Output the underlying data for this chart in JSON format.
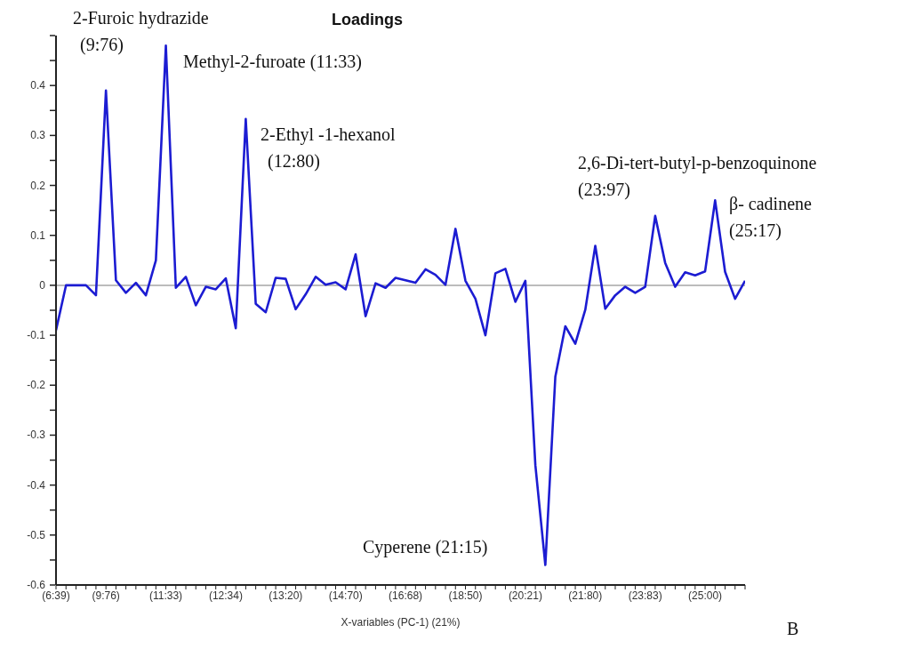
{
  "chart_data": {
    "type": "line",
    "title": "Loadings",
    "xlabel": "X-variables (PC-1) (21%)",
    "categories": [
      "(6:39)",
      null,
      null,
      null,
      null,
      "(9:76)",
      null,
      null,
      null,
      null,
      null,
      "(11:33)",
      null,
      null,
      null,
      null,
      null,
      "(12:34)",
      null,
      null,
      null,
      null,
      null,
      "(13:20)",
      null,
      null,
      null,
      null,
      null,
      "(14:70)",
      null,
      null,
      null,
      null,
      null,
      "(16:68)",
      null,
      null,
      null,
      null,
      null,
      "(18:50)",
      null,
      null,
      null,
      null,
      null,
      "(20:21)",
      null,
      null,
      null,
      null,
      null,
      "(21:80)",
      null,
      null,
      null,
      null,
      null,
      "(23:83)",
      null,
      null,
      null,
      null,
      null,
      "(25:00)",
      null,
      null,
      null,
      null
    ],
    "series": [
      {
        "color": "#1c1cd2",
        "values": [
          -0.09,
          0,
          0,
          0,
          -0.02,
          0.39,
          0.01,
          -0.015,
          0.005,
          -0.02,
          0.05,
          0.48,
          -0.005,
          0.017,
          -0.04,
          -0.003,
          -0.008,
          0.014,
          -0.086,
          0.333,
          -0.037,
          -0.054,
          0.015,
          0.013,
          -0.048,
          -0.018,
          0.017,
          0.001,
          0.006,
          -0.008,
          0.062,
          -0.062,
          0.004,
          -0.005,
          0.015,
          0.01,
          0.005,
          0.032,
          0.021,
          0.001,
          0.113,
          0.009,
          -0.027,
          -0.1,
          0.024,
          0.033,
          -0.033,
          0.009,
          -0.36,
          -0.56,
          -0.183,
          -0.082,
          -0.117,
          -0.049,
          0.079,
          -0.047,
          -0.02,
          -0.003,
          -0.015,
          -0.003,
          0.139,
          0.045,
          -0.003,
          0.026,
          0.02,
          0.028,
          0.17,
          0.027,
          -0.027,
          0.009
        ]
      }
    ],
    "ylim": [
      -0.6,
      0.5
    ],
    "yticks": [
      -0.6,
      {
        "value": -0.55,
        "label": null
      },
      -0.5,
      {
        "value": -0.45,
        "label": null
      },
      -0.4,
      {
        "value": -0.35,
        "label": null
      },
      -0.3,
      {
        "value": -0.25,
        "label": null
      },
      -0.2,
      {
        "value": -0.15,
        "label": null
      },
      -0.1,
      {
        "value": -0.05,
        "label": null
      },
      0,
      {
        "value": 0.05,
        "label": null
      },
      0.1,
      {
        "value": 0.15,
        "label": null
      },
      0.2,
      {
        "value": 0.25,
        "label": null
      },
      0.3,
      {
        "value": 0.35,
        "label": null
      },
      0.4,
      {
        "value": 0.45,
        "label": null
      },
      {
        "value": 0.5,
        "label": null
      }
    ],
    "ref_lines": [
      {
        "axis": "y",
        "value": 0,
        "color": "#a6a6a6"
      }
    ],
    "annotations": [
      "2-Furoic hydrazide (9:76)",
      "Methyl-2-furoate (11:33)",
      "2-Ethyl -1-hexanol (12:80)",
      "2,6-Di-tert-butyl-p-benzoquinone (23:97)",
      "β- cadinene (25:17)",
      "Cyperene (21:15)",
      "B"
    ]
  }
}
